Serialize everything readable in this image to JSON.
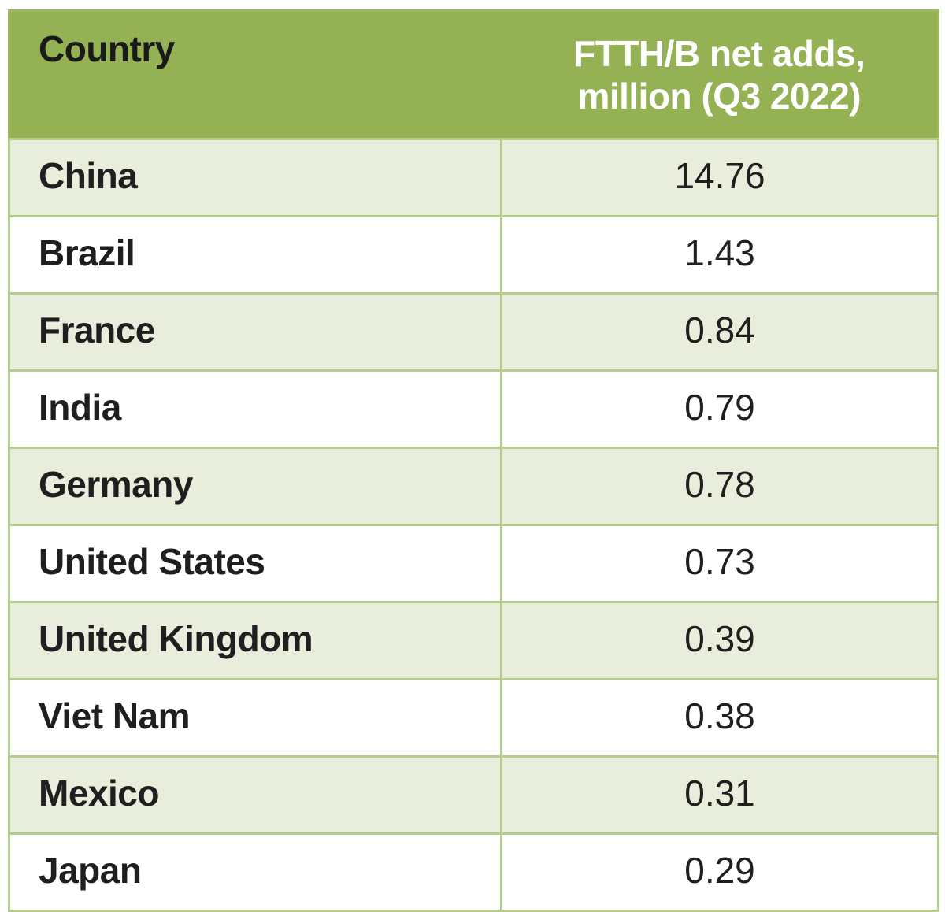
{
  "table": {
    "header": {
      "country_label": "Country",
      "value_label": "FTTH/B net adds,\nmillion (Q3 2022)"
    },
    "rows": [
      {
        "country": "China",
        "value": "14.76"
      },
      {
        "country": "Brazil",
        "value": "1.43"
      },
      {
        "country": "France",
        "value": "0.84"
      },
      {
        "country": "India",
        "value": "0.79"
      },
      {
        "country": "Germany",
        "value": "0.78"
      },
      {
        "country": "United States",
        "value": "0.73"
      },
      {
        "country": "United Kingdom",
        "value": "0.39"
      },
      {
        "country": "Viet Nam",
        "value": "0.38"
      },
      {
        "country": "Mexico",
        "value": "0.31"
      },
      {
        "country": "Japan",
        "value": "0.29"
      }
    ]
  },
  "colors": {
    "header_bg": "#94B254",
    "header_text": "#FFFFFF",
    "header_text_dark": "#1A1A1A",
    "band_row_bg": "#E9EEDC",
    "plain_row_bg": "#FFFFFF",
    "grid_line": "#B5CC8E",
    "outer_border": "#9CBA5B",
    "body_text": "#1F1F1F"
  },
  "chart_data": {
    "type": "table",
    "title": "FTTH/B net adds, million (Q3 2022)",
    "columns": [
      "Country",
      "FTTH/B net adds, million (Q3 2022)"
    ],
    "categories": [
      "China",
      "Brazil",
      "France",
      "India",
      "Germany",
      "United States",
      "United Kingdom",
      "Viet Nam",
      "Mexico",
      "Japan"
    ],
    "values": [
      14.76,
      1.43,
      0.84,
      0.79,
      0.78,
      0.73,
      0.39,
      0.38,
      0.31,
      0.29
    ],
    "layout_hints": {
      "banded_rows": true,
      "header_style": "green-fill-white-text",
      "value_alignment": "center",
      "country_alignment": "left"
    }
  }
}
